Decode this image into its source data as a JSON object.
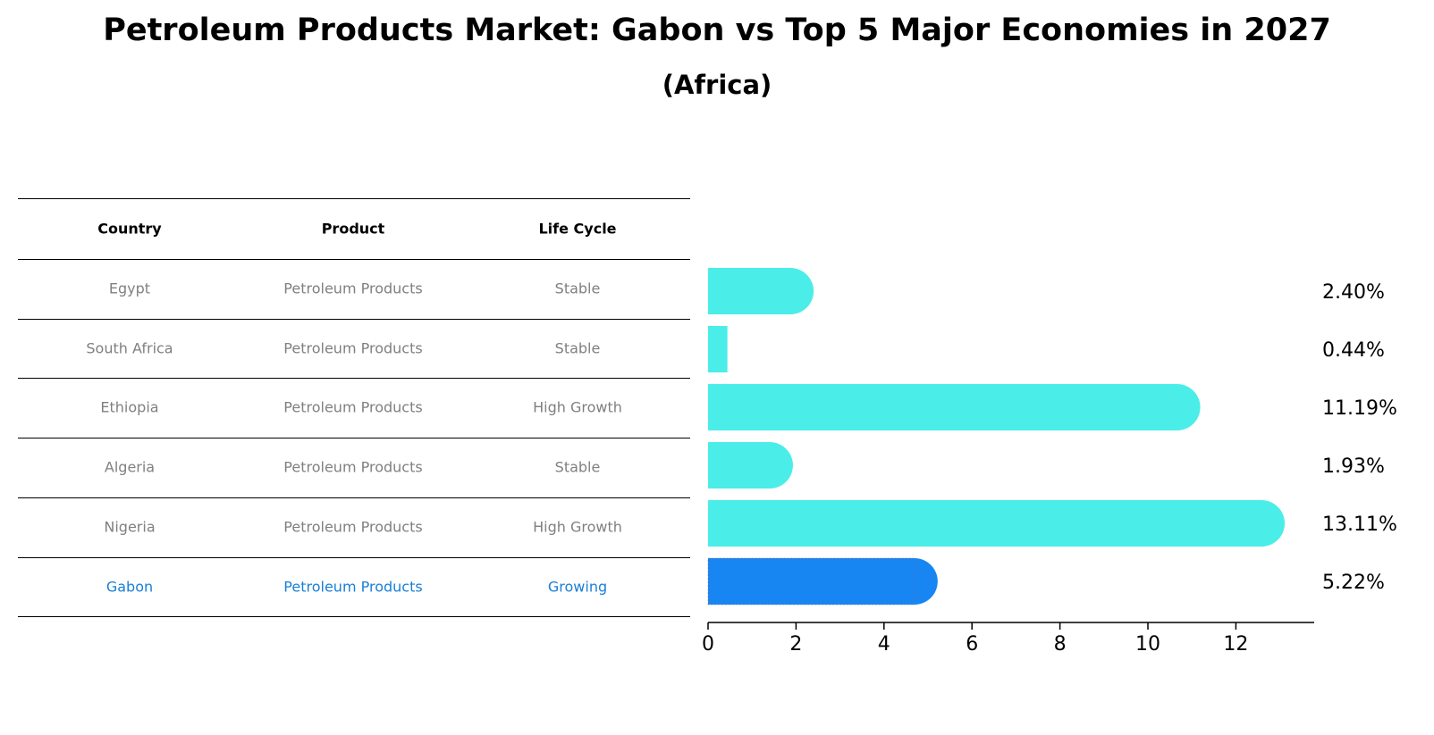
{
  "title": "Petroleum Products Market: Gabon vs Top 5 Major Economies in 2027",
  "subtitle": "(Africa)",
  "table": {
    "headers": [
      "Country",
      "Product",
      "Life Cycle"
    ],
    "rows": [
      {
        "country": "Egypt",
        "product": "Petroleum Products",
        "life_cycle": "Stable",
        "highlight": false
      },
      {
        "country": "South Africa",
        "product": "Petroleum Products",
        "life_cycle": "Stable",
        "highlight": false
      },
      {
        "country": "Ethiopia",
        "product": "Petroleum Products",
        "life_cycle": "High Growth",
        "highlight": false
      },
      {
        "country": "Algeria",
        "product": "Petroleum Products",
        "life_cycle": "Stable",
        "highlight": false
      },
      {
        "country": "Nigeria",
        "product": "Petroleum Products",
        "life_cycle": "High Growth",
        "highlight": false
      },
      {
        "country": "Gabon",
        "product": "Petroleum Products",
        "life_cycle": "Growing",
        "highlight": true
      }
    ]
  },
  "colors": {
    "bar": "#4bede9",
    "highlight_bar": "#1786f3",
    "highlight_text": "#1a7fd6",
    "normal_text": "#808080"
  },
  "chart_data": {
    "type": "bar",
    "orientation": "horizontal",
    "categories": [
      "Egypt",
      "South Africa",
      "Ethiopia",
      "Algeria",
      "Nigeria",
      "Gabon"
    ],
    "values": [
      2.4,
      0.44,
      11.19,
      1.93,
      13.11,
      5.22
    ],
    "value_labels": [
      "2.40%",
      "0.44%",
      "11.19%",
      "1.93%",
      "13.11%",
      "5.22%"
    ],
    "highlight": "Gabon",
    "xticks": [
      0,
      2,
      4,
      6,
      8,
      10,
      12
    ],
    "xlim": [
      0,
      13.8
    ],
    "xlabel": "",
    "ylabel": ""
  }
}
